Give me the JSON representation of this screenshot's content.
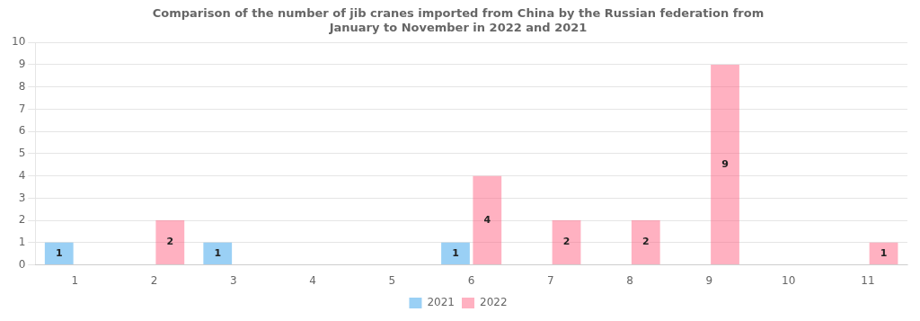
{
  "chart_data": {
    "type": "bar",
    "title": "Comparison of the number of jib cranes imported from China by the Russian federation from\nJanuary to November in 2022 and 2021",
    "categories": [
      1,
      2,
      3,
      4,
      5,
      6,
      7,
      8,
      9,
      10,
      11
    ],
    "series": [
      {
        "name": "2021",
        "values": [
          1,
          0,
          1,
          0,
          0,
          1,
          0,
          0,
          0,
          0,
          0
        ]
      },
      {
        "name": "2022",
        "values": [
          0,
          2,
          0,
          0,
          0,
          4,
          2,
          2,
          9,
          0,
          1
        ]
      }
    ],
    "ylim": [
      0,
      10
    ],
    "yticks": [
      0,
      1,
      2,
      3,
      4,
      5,
      6,
      7,
      8,
      9,
      10
    ],
    "grid": true,
    "legend": "bottom",
    "data_labels": true
  }
}
